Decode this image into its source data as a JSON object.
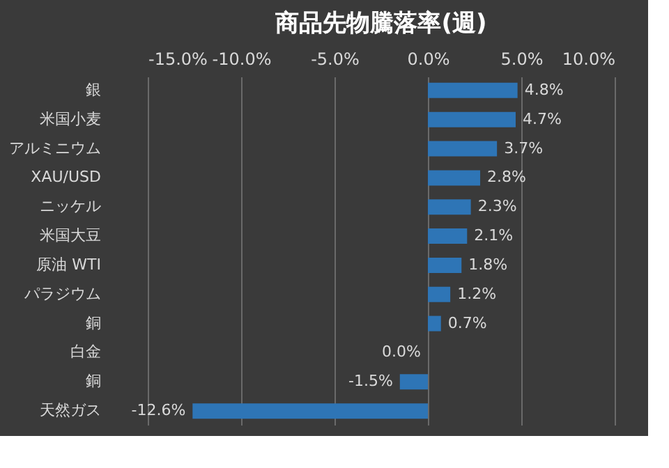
{
  "chart_data": {
    "type": "bar",
    "orientation": "horizontal",
    "title": "商品先物騰落率(週)",
    "categories": [
      "銀",
      "米国小麦",
      "アルミニウム",
      "XAU/USD",
      "ニッケル",
      "米国大豆",
      "原油 WTI",
      "パラジウム",
      "銅",
      "白金",
      "銅",
      "天然ガス"
    ],
    "values": [
      4.8,
      4.7,
      3.7,
      2.8,
      2.3,
      2.1,
      1.8,
      1.2,
      0.7,
      0.0,
      -1.5,
      -12.6
    ],
    "value_labels": [
      "4.8%",
      "4.7%",
      "3.7%",
      "2.8%",
      "2.3%",
      "2.1%",
      "1.8%",
      "1.2%",
      "0.7%",
      "0.0%",
      "-1.5%",
      "-12.6%"
    ],
    "color": "#2e75b6",
    "xlim": [
      -15,
      10
    ],
    "xticks": [
      {
        "value": -15,
        "label": "-15.0%"
      },
      {
        "value": -10,
        "label": "-10.0%"
      },
      {
        "value": -5,
        "label": "-5.0%"
      },
      {
        "value": 0,
        "label": "0.0%"
      },
      {
        "value": 5,
        "label": "5.0%"
      },
      {
        "value": 10,
        "label": "10.0%"
      }
    ],
    "grid": "x"
  }
}
